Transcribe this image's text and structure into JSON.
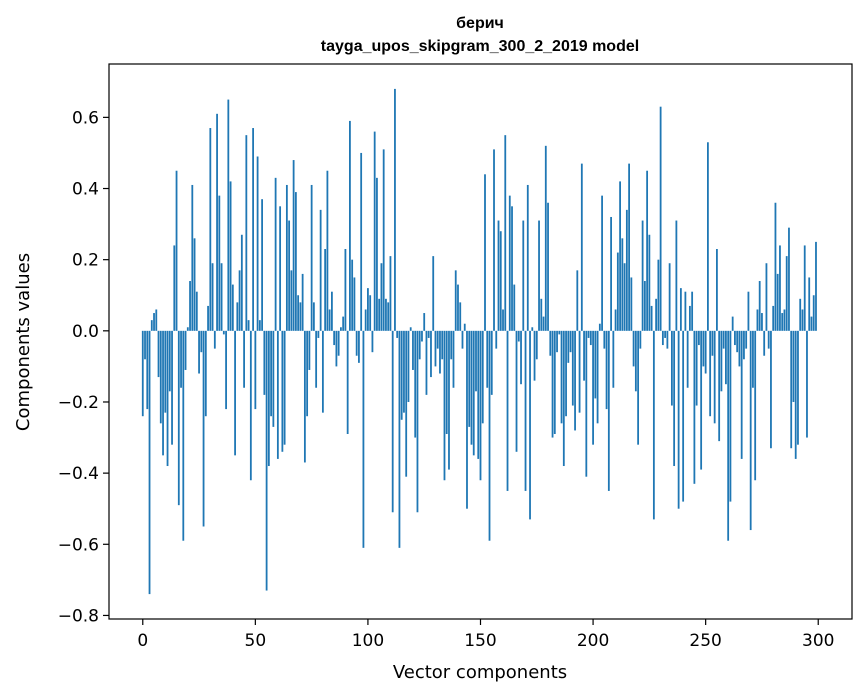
{
  "chart_data": {
    "type": "bar",
    "title": [
      "берич",
      "tayga_upos_skipgram_300_2_2019 model"
    ],
    "xlabel": "Vector components",
    "ylabel": "Components values",
    "xlim": [
      -15,
      315
    ],
    "ylim": [
      -0.81,
      0.75
    ],
    "xticks": [
      0,
      50,
      100,
      150,
      200,
      250,
      300
    ],
    "yticks": [
      -0.8,
      -0.6,
      -0.4,
      -0.2,
      0.0,
      0.2,
      0.4,
      0.6
    ],
    "ytick_labels": [
      "−0.8",
      "−0.6",
      "−0.4",
      "−0.2",
      "0.0",
      "0.2",
      "0.4",
      "0.6"
    ],
    "bar_color": "#1f77b4",
    "grid": false,
    "values": [
      -0.24,
      -0.08,
      -0.22,
      -0.74,
      0.03,
      0.05,
      0.06,
      -0.13,
      -0.26,
      -0.35,
      -0.23,
      -0.38,
      -0.17,
      -0.32,
      0.24,
      0.45,
      -0.49,
      -0.16,
      -0.59,
      -0.11,
      0.01,
      0.14,
      0.41,
      0.26,
      0.11,
      -0.12,
      -0.06,
      -0.55,
      -0.24,
      0.07,
      0.57,
      0.19,
      -0.05,
      0.61,
      0.38,
      0.19,
      -0.01,
      -0.22,
      0.65,
      0.42,
      0.13,
      -0.35,
      0.08,
      0.17,
      0.27,
      -0.16,
      0.55,
      0.03,
      -0.42,
      0.57,
      -0.22,
      0.49,
      0.03,
      0.37,
      -0.18,
      -0.73,
      -0.38,
      -0.24,
      -0.27,
      0.43,
      -0.36,
      0.35,
      -0.34,
      -0.32,
      0.41,
      0.31,
      0.17,
      0.48,
      0.39,
      0.1,
      0.08,
      0.16,
      -0.37,
      -0.24,
      -0.11,
      0.41,
      0.08,
      -0.16,
      -0.02,
      0.34,
      -0.23,
      0.23,
      0.45,
      0.06,
      0.11,
      -0.04,
      -0.1,
      -0.07,
      0.01,
      0.04,
      0.23,
      -0.29,
      0.59,
      0.2,
      0.15,
      -0.07,
      -0.09,
      0.5,
      -0.61,
      0.06,
      0.12,
      0.1,
      -0.06,
      0.56,
      0.43,
      0.09,
      0.19,
      0.51,
      0.09,
      0.08,
      0.21,
      -0.51,
      0.68,
      -0.02,
      -0.61,
      -0.25,
      -0.23,
      -0.41,
      -0.2,
      0.01,
      -0.11,
      -0.3,
      -0.51,
      -0.08,
      -0.03,
      0.05,
      -0.18,
      -0.02,
      -0.13,
      0.21,
      -0.1,
      -0.05,
      -0.12,
      -0.08,
      -0.42,
      -0.29,
      -0.39,
      -0.08,
      -0.16,
      0.17,
      0.13,
      0.08,
      -0.05,
      0.02,
      -0.5,
      -0.27,
      -0.32,
      -0.35,
      -0.17,
      -0.36,
      -0.42,
      -0.26,
      0.44,
      -0.16,
      -0.59,
      -0.18,
      0.51,
      -0.05,
      0.31,
      0.28,
      0.06,
      0.55,
      -0.45,
      0.38,
      0.35,
      0.13,
      -0.34,
      -0.03,
      -0.15,
      0.31,
      -0.45,
      0.41,
      -0.53,
      0.01,
      -0.14,
      -0.08,
      0.31,
      0.09,
      0.04,
      0.52,
      0.36,
      -0.07,
      -0.3,
      -0.29,
      -0.06,
      -0.01,
      -0.26,
      -0.38,
      -0.24,
      -0.09,
      -0.06,
      -0.21,
      -0.28,
      0.17,
      -0.23,
      0.47,
      -0.14,
      -0.41,
      -0.02,
      -0.04,
      -0.32,
      -0.19,
      -0.26,
      0.02,
      0.38,
      -0.05,
      -0.22,
      -0.45,
      0.32,
      -0.16,
      0.06,
      0.22,
      0.42,
      0.26,
      0.19,
      0.34,
      0.47,
      0.15,
      -0.1,
      -0.17,
      -0.32,
      -0.05,
      0.31,
      0.14,
      0.45,
      0.27,
      0.07,
      -0.53,
      0.09,
      0.2,
      0.63,
      -0.04,
      -0.02,
      -0.05,
      0.19,
      -0.21,
      -0.38,
      0.31,
      -0.5,
      0.12,
      -0.48,
      0.11,
      -0.16,
      0.07,
      0.11,
      -0.43,
      -0.21,
      -0.04,
      -0.39,
      -0.1,
      -0.12,
      0.53,
      -0.24,
      -0.07,
      -0.26,
      0.23,
      -0.31,
      -0.17,
      -0.05,
      -0.15,
      -0.59,
      -0.48,
      0.04,
      -0.04,
      -0.06,
      -0.1,
      -0.36,
      -0.08,
      -0.05,
      0.11,
      -0.56,
      -0.16,
      -0.42,
      0.06,
      0.14,
      0.05,
      -0.07,
      0.19,
      -0.05,
      -0.33,
      0.07,
      0.36,
      0.16,
      0.24,
      0.05,
      0.06,
      0.21,
      0.29,
      -0.33,
      -0.2,
      -0.36,
      -0.32,
      0.09,
      0.06,
      0.24,
      -0.3,
      0.15,
      0.04,
      0.1,
      0.25
    ]
  }
}
